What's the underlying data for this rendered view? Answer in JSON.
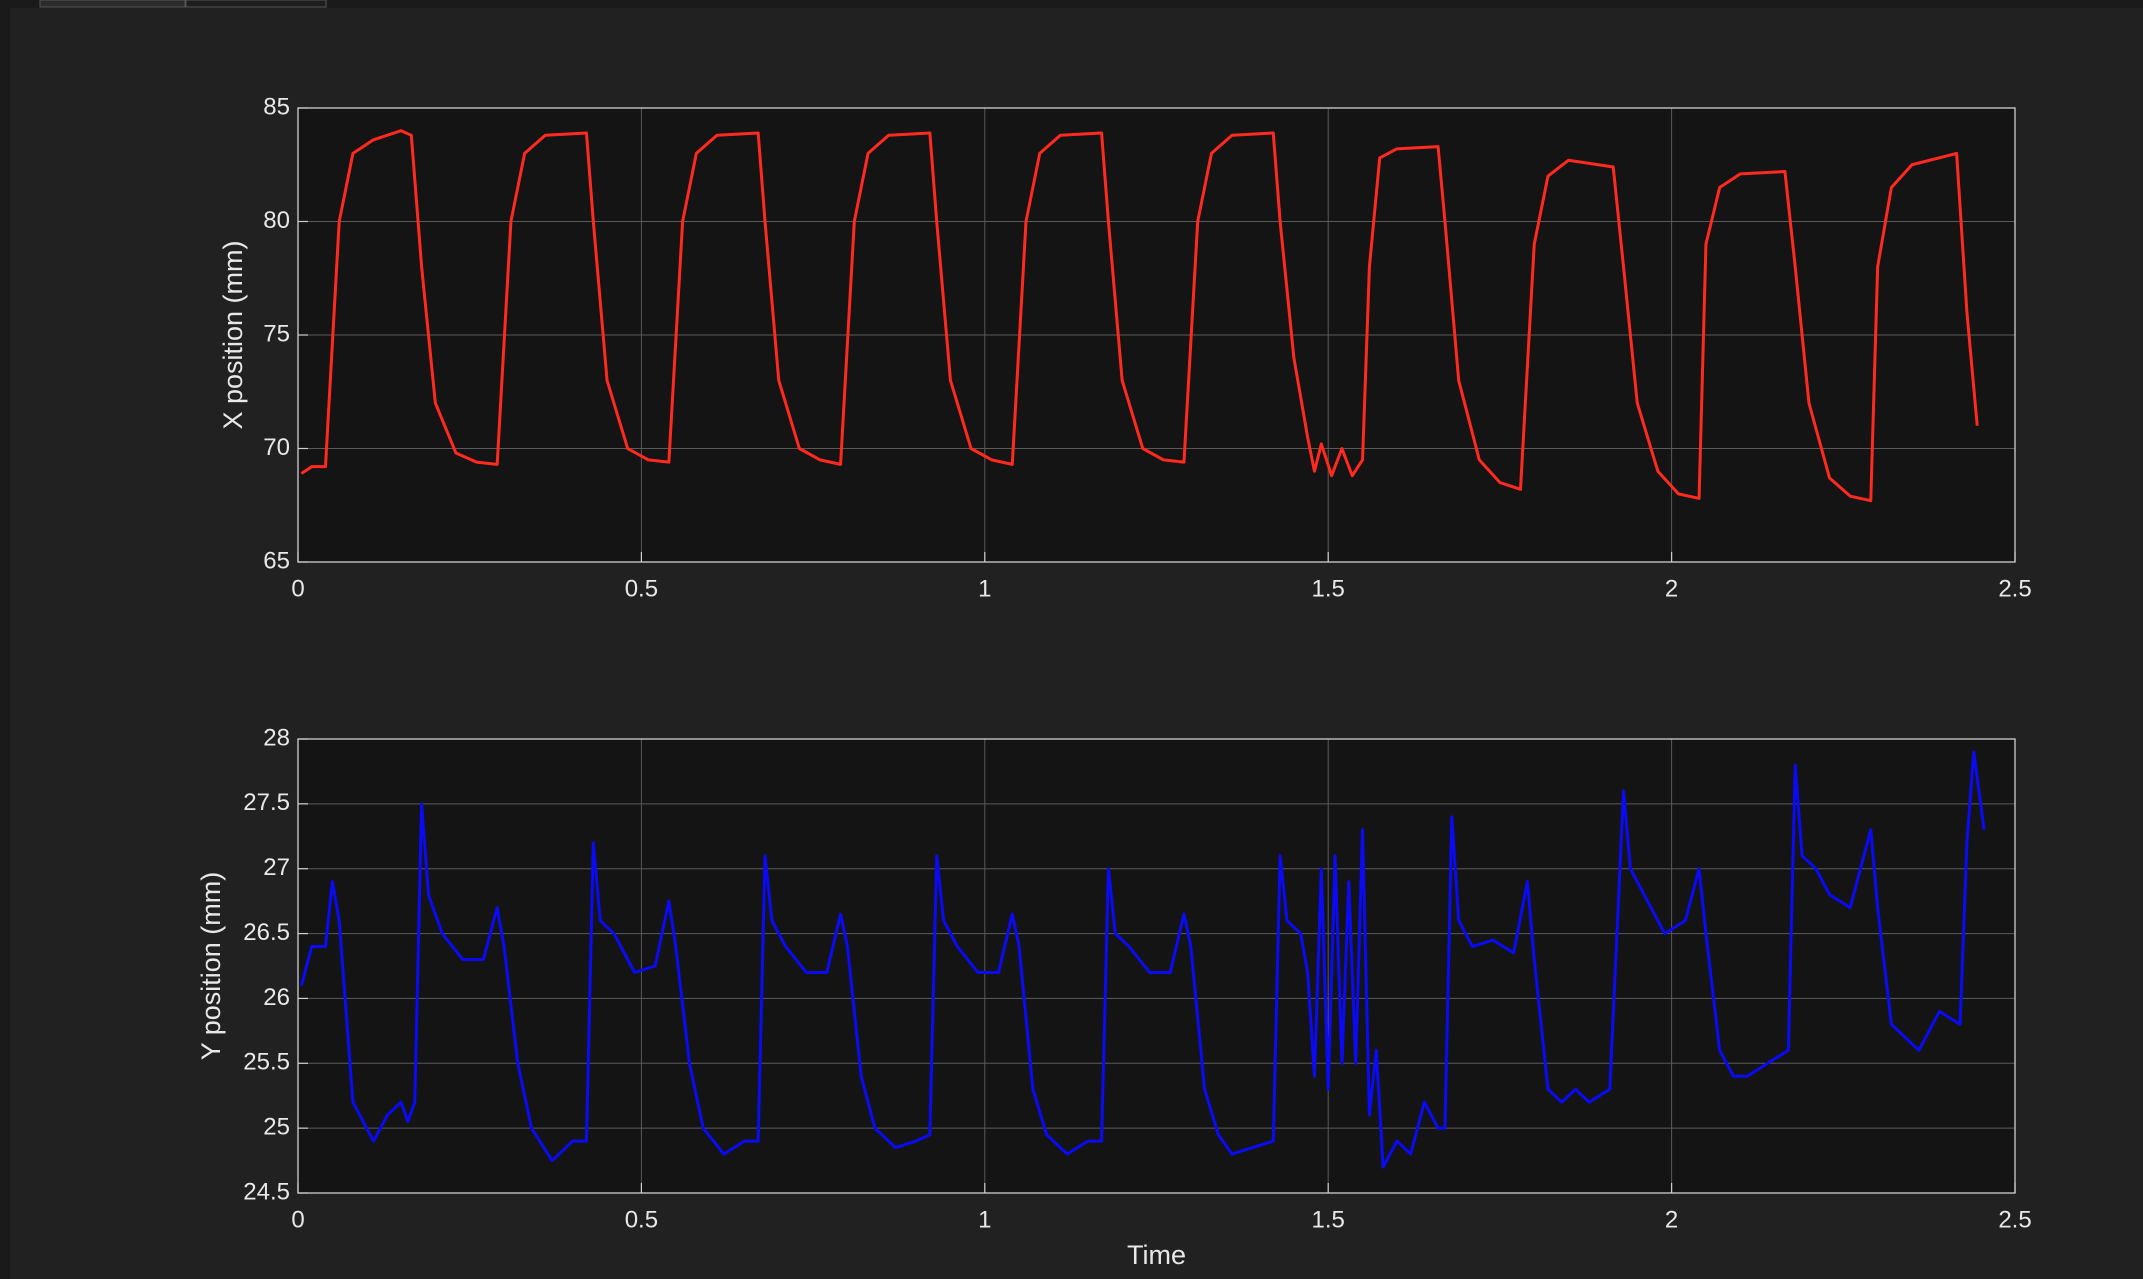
{
  "chart_data": [
    {
      "type": "line",
      "ylabel": "X position (mm)",
      "color": "#ff2a1f",
      "xlim": [
        0,
        2.5
      ],
      "xticks": [
        0,
        0.5,
        1,
        1.5,
        2,
        2.5
      ],
      "ylim": [
        65,
        85
      ],
      "yticks": [
        65,
        70,
        75,
        80,
        85
      ],
      "grid": true,
      "x": [
        0.005,
        0.02,
        0.04,
        0.06,
        0.08,
        0.11,
        0.15,
        0.165,
        0.18,
        0.2,
        0.23,
        0.26,
        0.29,
        0.31,
        0.33,
        0.36,
        0.42,
        0.43,
        0.45,
        0.48,
        0.51,
        0.54,
        0.56,
        0.58,
        0.61,
        0.67,
        0.68,
        0.7,
        0.73,
        0.76,
        0.79,
        0.81,
        0.83,
        0.86,
        0.92,
        0.93,
        0.95,
        0.98,
        1.01,
        1.04,
        1.06,
        1.08,
        1.11,
        1.17,
        1.18,
        1.2,
        1.23,
        1.26,
        1.29,
        1.31,
        1.33,
        1.36,
        1.42,
        1.43,
        1.45,
        1.47,
        1.48,
        1.49,
        1.505,
        1.52,
        1.535,
        1.55,
        1.56,
        1.575,
        1.6,
        1.66,
        1.67,
        1.69,
        1.72,
        1.75,
        1.78,
        1.8,
        1.82,
        1.85,
        1.915,
        1.93,
        1.95,
        1.98,
        2.01,
        2.04,
        2.05,
        2.07,
        2.1,
        2.165,
        2.18,
        2.2,
        2.23,
        2.26,
        2.29,
        2.3,
        2.32,
        2.35,
        2.415,
        2.43,
        2.445
      ],
      "values": [
        68.9,
        69.2,
        69.2,
        80,
        83,
        83.6,
        84,
        83.8,
        78,
        72,
        69.8,
        69.4,
        69.3,
        80,
        83,
        83.8,
        83.9,
        80,
        73,
        70,
        69.5,
        69.4,
        80,
        83,
        83.8,
        83.9,
        80,
        73,
        70,
        69.5,
        69.3,
        80,
        83,
        83.8,
        83.9,
        80,
        73,
        70,
        69.5,
        69.3,
        80,
        83,
        83.8,
        83.9,
        80,
        73,
        70,
        69.5,
        69.4,
        80,
        83,
        83.8,
        83.9,
        80,
        74,
        70.5,
        69,
        70.2,
        68.8,
        70,
        68.8,
        69.5,
        78,
        82.8,
        83.2,
        83.3,
        80,
        73,
        69.5,
        68.5,
        68.2,
        79,
        82,
        82.7,
        82.4,
        78,
        72,
        69,
        68,
        67.8,
        79,
        81.5,
        82.1,
        82.2,
        78,
        72,
        68.7,
        67.9,
        67.7,
        78,
        81.5,
        82.5,
        83,
        76,
        71
      ]
    },
    {
      "type": "line",
      "ylabel": "Y position (mm)",
      "xlabel": "Time",
      "color": "#0a0af5",
      "xlim": [
        0,
        2.5
      ],
      "xticks": [
        0,
        0.5,
        1,
        1.5,
        2,
        2.5
      ],
      "ylim": [
        24.5,
        28
      ],
      "yticks": [
        24.5,
        25,
        25.5,
        26,
        26.5,
        27,
        27.5,
        28
      ],
      "grid": true,
      "x": [
        0.005,
        0.02,
        0.04,
        0.05,
        0.06,
        0.08,
        0.1,
        0.11,
        0.13,
        0.15,
        0.16,
        0.17,
        0.18,
        0.19,
        0.21,
        0.24,
        0.27,
        0.29,
        0.3,
        0.32,
        0.34,
        0.37,
        0.4,
        0.42,
        0.43,
        0.44,
        0.46,
        0.49,
        0.52,
        0.54,
        0.55,
        0.57,
        0.59,
        0.62,
        0.65,
        0.67,
        0.68,
        0.69,
        0.71,
        0.74,
        0.77,
        0.79,
        0.8,
        0.82,
        0.84,
        0.87,
        0.9,
        0.92,
        0.93,
        0.94,
        0.96,
        0.99,
        1.02,
        1.04,
        1.05,
        1.07,
        1.09,
        1.12,
        1.15,
        1.17,
        1.18,
        1.19,
        1.21,
        1.24,
        1.27,
        1.29,
        1.3,
        1.32,
        1.34,
        1.36,
        1.39,
        1.42,
        1.43,
        1.44,
        1.46,
        1.47,
        1.48,
        1.49,
        1.5,
        1.51,
        1.52,
        1.53,
        1.54,
        1.55,
        1.56,
        1.57,
        1.58,
        1.6,
        1.62,
        1.64,
        1.66,
        1.67,
        1.68,
        1.69,
        1.71,
        1.74,
        1.77,
        1.79,
        1.8,
        1.82,
        1.84,
        1.86,
        1.88,
        1.91,
        1.93,
        1.94,
        1.96,
        1.99,
        2.02,
        2.04,
        2.05,
        2.07,
        2.09,
        2.11,
        2.14,
        2.17,
        2.18,
        2.19,
        2.21,
        2.23,
        2.26,
        2.29,
        2.3,
        2.32,
        2.34,
        2.36,
        2.39,
        2.42,
        2.43,
        2.44,
        2.455
      ],
      "values": [
        26.1,
        26.4,
        26.4,
        26.9,
        26.6,
        25.2,
        25.0,
        24.9,
        25.1,
        25.2,
        25.05,
        25.2,
        27.5,
        26.8,
        26.5,
        26.3,
        26.3,
        26.7,
        26.4,
        25.5,
        25.0,
        24.75,
        24.9,
        24.9,
        27.2,
        26.6,
        26.5,
        26.2,
        26.25,
        26.75,
        26.4,
        25.5,
        25.0,
        24.8,
        24.9,
        24.9,
        27.1,
        26.6,
        26.4,
        26.2,
        26.2,
        26.65,
        26.4,
        25.4,
        25.0,
        24.85,
        24.9,
        24.95,
        27.1,
        26.6,
        26.4,
        26.2,
        26.2,
        26.65,
        26.4,
        25.3,
        24.95,
        24.8,
        24.9,
        24.9,
        27.0,
        26.5,
        26.4,
        26.2,
        26.2,
        26.65,
        26.4,
        25.3,
        24.95,
        24.8,
        24.85,
        24.9,
        27.1,
        26.6,
        26.5,
        26.2,
        25.4,
        27.0,
        25.3,
        27.1,
        25.5,
        26.9,
        25.5,
        27.3,
        25.1,
        25.6,
        24.7,
        24.9,
        24.8,
        25.2,
        25.0,
        25.0,
        27.4,
        26.6,
        26.4,
        26.45,
        26.35,
        26.9,
        26.3,
        25.3,
        25.2,
        25.3,
        25.2,
        25.3,
        27.6,
        27.0,
        26.8,
        26.5,
        26.6,
        27.0,
        26.5,
        25.6,
        25.4,
        25.4,
        25.5,
        25.6,
        27.8,
        27.1,
        27.0,
        26.8,
        26.7,
        27.3,
        26.7,
        25.8,
        25.7,
        25.6,
        25.9,
        25.8,
        27.2,
        27.9,
        27.3
      ]
    }
  ]
}
